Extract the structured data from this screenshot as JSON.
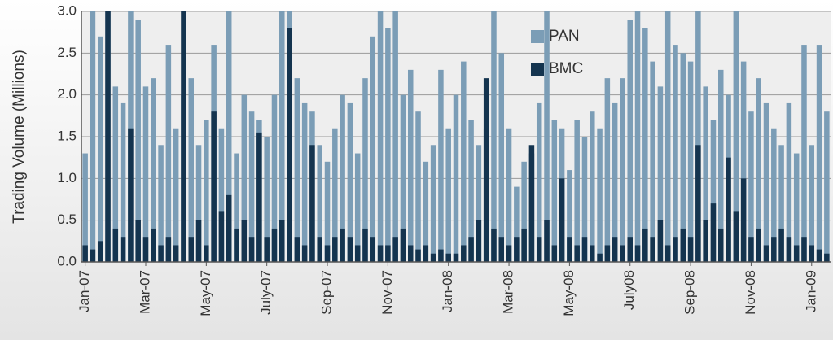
{
  "chart_data": {
    "type": "bar",
    "y_label": "Trading Volume (Millions)",
    "categories": [
      "Jan-07",
      null,
      null,
      null,
      null,
      null,
      null,
      null,
      "Mar-07",
      null,
      null,
      null,
      null,
      null,
      null,
      null,
      "May-07",
      null,
      null,
      null,
      null,
      null,
      null,
      null,
      "July-07",
      null,
      null,
      null,
      null,
      null,
      null,
      null,
      "Sep-07",
      null,
      null,
      null,
      null,
      null,
      null,
      null,
      "Nov-07",
      null,
      null,
      null,
      null,
      null,
      null,
      null,
      "Jan-08",
      null,
      null,
      null,
      null,
      null,
      null,
      null,
      "Mar-08",
      null,
      null,
      null,
      null,
      null,
      null,
      null,
      "May-08",
      null,
      null,
      null,
      null,
      null,
      null,
      null,
      "July08",
      null,
      null,
      null,
      null,
      null,
      null,
      null,
      "Sep-08",
      null,
      null,
      null,
      null,
      null,
      null,
      null,
      "Nov-08",
      null,
      null,
      null,
      null,
      null,
      null,
      null,
      "Jan-09",
      null,
      null
    ],
    "series": [
      {
        "name": "PAN",
        "color": "#7b9db6",
        "values": [
          1.3,
          3.0,
          2.7,
          3.0,
          2.1,
          1.9,
          3.0,
          2.9,
          2.1,
          2.2,
          1.4,
          2.6,
          1.6,
          2.0,
          2.2,
          1.4,
          1.7,
          2.6,
          1.6,
          3.0,
          1.3,
          2.0,
          1.8,
          1.7,
          1.5,
          2.0,
          3.0,
          3.0,
          2.2,
          1.9,
          1.8,
          1.4,
          1.2,
          1.6,
          2.0,
          1.9,
          1.3,
          2.2,
          2.7,
          3.0,
          2.8,
          3.0,
          2.0,
          2.3,
          1.8,
          1.2,
          1.4,
          2.3,
          1.6,
          2.0,
          2.4,
          1.7,
          1.4,
          1.6,
          3.0,
          2.5,
          1.6,
          0.9,
          1.2,
          1.3,
          1.9,
          3.0,
          1.7,
          1.6,
          1.1,
          1.7,
          1.5,
          1.8,
          1.6,
          2.2,
          1.9,
          2.2,
          2.9,
          3.0,
          2.8,
          2.4,
          2.1,
          3.0,
          2.6,
          2.5,
          2.4,
          3.0,
          2.1,
          1.7,
          2.3,
          2.0,
          3.0,
          2.4,
          1.8,
          2.2,
          1.9,
          1.6,
          1.4,
          1.9,
          1.3,
          2.6,
          1.4,
          2.6,
          1.8
        ]
      },
      {
        "name": "BMC",
        "color": "#14344f",
        "values": [
          0.2,
          0.15,
          0.25,
          3.0,
          0.4,
          0.3,
          1.6,
          0.5,
          0.3,
          0.4,
          0.2,
          0.3,
          0.2,
          3.0,
          0.3,
          0.5,
          0.2,
          1.8,
          0.6,
          0.8,
          0.4,
          0.5,
          0.3,
          1.55,
          0.3,
          0.4,
          0.5,
          2.8,
          0.3,
          0.2,
          1.4,
          0.3,
          0.2,
          0.3,
          0.4,
          0.3,
          0.2,
          0.4,
          0.3,
          0.2,
          0.2,
          0.3,
          0.4,
          0.2,
          0.15,
          0.2,
          0.1,
          0.15,
          0.1,
          0.1,
          0.2,
          0.3,
          0.5,
          2.2,
          0.4,
          0.3,
          0.2,
          0.3,
          0.4,
          1.4,
          0.3,
          0.5,
          0.2,
          1.0,
          0.3,
          0.2,
          0.3,
          0.2,
          0.1,
          0.2,
          0.3,
          0.2,
          0.3,
          0.2,
          0.4,
          0.3,
          0.5,
          0.2,
          0.3,
          0.4,
          0.3,
          1.4,
          0.5,
          0.7,
          0.4,
          1.25,
          0.6,
          1.0,
          0.3,
          0.4,
          0.2,
          0.3,
          0.4,
          0.3,
          0.2,
          0.3,
          0.2,
          0.15,
          0.1
        ]
      }
    ],
    "ylim": [
      0,
      3
    ],
    "yticks": [
      {
        "value": 0,
        "label": "0.0"
      },
      0.5,
      {
        "value": 1,
        "label": "1.0"
      },
      1.5,
      {
        "value": 2,
        "label": "2.0"
      },
      2.5,
      {
        "value": 3,
        "label": "3.0"
      }
    ],
    "grid": true,
    "legend": "top-center"
  }
}
